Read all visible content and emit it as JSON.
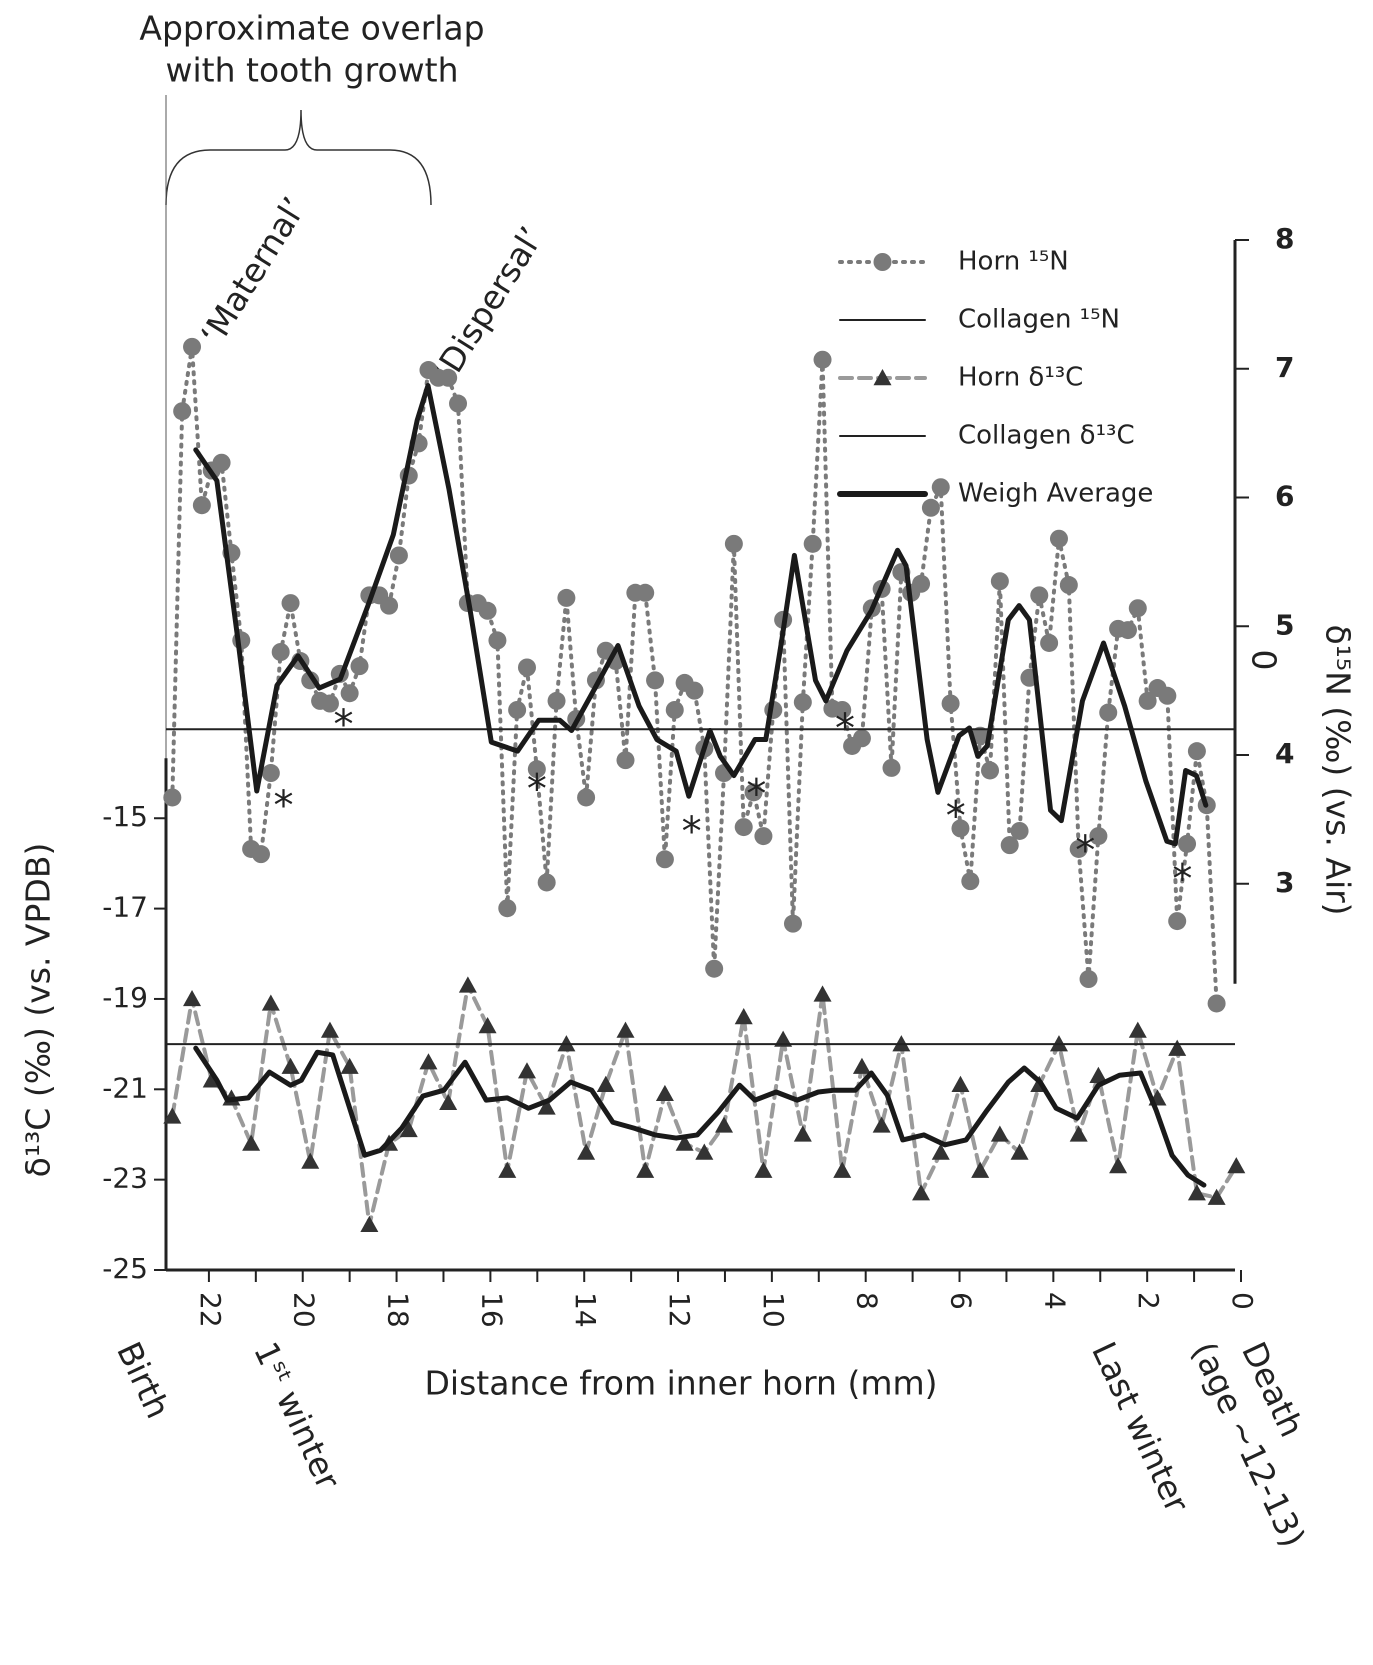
{
  "chart_data": {
    "type": "line",
    "title_lines": [
      "Approximate overlap",
      "with tooth growth"
    ],
    "labels": {
      "maternal": "‘Maternal’",
      "dispersal": "‘Dispersal’",
      "birth": "Birth",
      "first_winter": "1ˢᵗ winter",
      "last_winter": "Last winter",
      "death": [
        "Death",
        "(age ~12-13)"
      ],
      "stray": "0"
    },
    "xlabel": "Distance from inner horn (mm)",
    "ylabel": "δ¹³C (‰) (vs. VPDB)",
    "y2label": "δ¹⁵N (‰) (vs. Air)",
    "xlim": [
      23,
      0
    ],
    "xticks": [
      22,
      20,
      18,
      16,
      14,
      12,
      10,
      8,
      6,
      4,
      2,
      0
    ],
    "ylim": [
      -25,
      -2.2
    ],
    "yticks": [
      -25,
      -23,
      -21,
      -19,
      -17,
      -15
    ],
    "y2lim": [
      0,
      8
    ],
    "y2ticks": [
      3,
      4,
      5,
      6,
      7,
      8
    ],
    "asterisks": {
      "text": "*",
      "axis": "y2",
      "x": [
        20.41,
        19.13,
        15.01,
        11.71,
        10.33,
        8.44,
        6.08,
        3.32,
        1.25
      ],
      "values": [
        3.65,
        4.28,
        3.78,
        3.45,
        3.74,
        4.25,
        3.57,
        3.3,
        3.08
      ]
    },
    "series": [
      {
        "name": "Horn ¹⁵N",
        "axis": "y2",
        "color": "#7a7a7a",
        "style": "dotted",
        "marker": "circle",
        "x": [
          22.78,
          22.57,
          22.36,
          22.15,
          21.94,
          21.73,
          21.52,
          21.31,
          21.1,
          20.89,
          20.68,
          20.47,
          20.26,
          20.05,
          19.84,
          19.63,
          19.42,
          19.21,
          19.0,
          18.79,
          18.58,
          18.37,
          18.16,
          17.95,
          17.74,
          17.53,
          17.32,
          17.11,
          16.9,
          16.69,
          16.48,
          16.27,
          16.06,
          15.85,
          15.64,
          15.43,
          15.22,
          15.01,
          14.8,
          14.59,
          14.38,
          14.17,
          13.96,
          13.75,
          13.54,
          13.33,
          13.12,
          12.91,
          12.7,
          12.49,
          12.28,
          12.07,
          11.86,
          11.65,
          11.44,
          11.23,
          11.02,
          10.81,
          10.6,
          10.39,
          10.18,
          9.97,
          9.76,
          9.55,
          9.34,
          9.13,
          8.92,
          8.71,
          8.5,
          8.29,
          8.08,
          7.87,
          7.66,
          7.45,
          7.24,
          7.03,
          6.82,
          6.61,
          6.4,
          6.19,
          5.98,
          5.77,
          5.56,
          5.35,
          5.14,
          4.93,
          4.72,
          4.51,
          4.3,
          4.09,
          3.88,
          3.67,
          3.46,
          3.25,
          3.04,
          2.83,
          2.62,
          2.41,
          2.2,
          1.99,
          1.78,
          1.57,
          1.36,
          1.15,
          0.94,
          0.73,
          0.52
        ],
        "values": [
          3.67,
          6.67,
          7.17,
          5.94,
          6.21,
          6.27,
          5.57,
          4.89,
          3.27,
          3.23,
          3.86,
          4.8,
          5.18,
          4.73,
          4.58,
          4.42,
          4.4,
          4.63,
          4.48,
          4.69,
          5.24,
          5.24,
          5.16,
          5.55,
          6.17,
          6.42,
          6.99,
          6.93,
          6.93,
          6.73,
          5.18,
          5.18,
          5.12,
          4.89,
          2.81,
          4.35,
          4.68,
          3.89,
          3.01,
          4.42,
          5.22,
          4.28,
          3.67,
          4.58,
          4.81,
          4.73,
          3.96,
          5.26,
          5.26,
          4.58,
          3.19,
          4.35,
          4.56,
          4.5,
          4.05,
          2.34,
          3.86,
          5.64,
          3.44,
          3.71,
          3.37,
          4.35,
          5.05,
          2.69,
          4.41,
          5.64,
          7.07,
          4.36,
          4.35,
          4.07,
          4.13,
          5.14,
          5.29,
          3.9,
          5.42,
          5.26,
          5.33,
          5.92,
          6.08,
          4.4,
          3.43,
          3.02,
          4.15,
          3.88,
          5.35,
          3.3,
          3.41,
          4.6,
          5.24,
          4.87,
          5.68,
          5.32,
          3.27,
          2.26,
          3.37,
          4.33,
          4.98,
          4.97,
          5.14,
          4.42,
          4.52,
          4.46,
          2.71,
          3.31,
          4.03,
          3.61,
          2.07
        ]
      },
      {
        "name": "Collagen ¹⁵N",
        "axis": "y2",
        "color": "#222222",
        "style": "hline",
        "values": [
          4.2
        ]
      },
      {
        "name": "Horn δ¹³C",
        "axis": "y",
        "color": "#9a9a9a",
        "style": "dashed",
        "marker": "triangle",
        "marker_color": "#333333",
        "x": [
          22.78,
          22.36,
          21.94,
          21.52,
          21.1,
          20.68,
          20.26,
          19.84,
          19.42,
          19.0,
          18.58,
          18.16,
          17.74,
          17.32,
          16.9,
          16.48,
          16.06,
          15.64,
          15.22,
          14.8,
          14.38,
          13.96,
          13.54,
          13.12,
          12.7,
          12.28,
          11.86,
          11.44,
          11.02,
          10.6,
          10.18,
          9.76,
          9.34,
          8.92,
          8.5,
          8.08,
          7.66,
          7.24,
          6.82,
          6.4,
          5.98,
          5.56,
          5.14,
          4.72,
          4.3,
          3.88,
          3.46,
          3.04,
          2.62,
          2.2,
          1.78,
          1.36,
          0.94,
          0.52,
          0.1
        ],
        "values": [
          -21.6,
          -19.0,
          -20.8,
          -21.2,
          -22.2,
          -19.1,
          -20.5,
          -22.6,
          -19.7,
          -20.5,
          -24.0,
          -22.2,
          -21.9,
          -20.4,
          -21.3,
          -18.7,
          -19.6,
          -22.8,
          -20.6,
          -21.4,
          -20.0,
          -22.4,
          -20.9,
          -19.7,
          -22.8,
          -21.1,
          -22.2,
          -22.4,
          -21.8,
          -19.4,
          -22.8,
          -19.9,
          -22.0,
          -18.9,
          -22.8,
          -20.5,
          -21.8,
          -20.0,
          -23.3,
          -22.4,
          -20.9,
          -22.8,
          -22.0,
          -22.4,
          -20.9,
          -20.0,
          -22.0,
          -20.7,
          -22.7,
          -19.7,
          -21.2,
          -20.1,
          -23.3,
          -23.4,
          -22.7
        ]
      },
      {
        "name": "Collagen δ¹³C",
        "axis": "y",
        "color": "#222222",
        "style": "hline",
        "values": [
          -20
        ]
      },
      {
        "name": "Weigh Average",
        "axis": "y2",
        "color": "#1a1a1a",
        "style": "thick",
        "x": [
          22.28,
          21.83,
          21.38,
          20.98,
          20.55,
          20.1,
          19.65,
          19.2,
          18.61,
          18.07,
          17.56,
          17.33,
          16.88,
          16.43,
          15.98,
          15.42,
          14.97,
          14.52,
          14.27,
          13.8,
          13.28,
          12.83,
          12.45,
          12.04,
          11.77,
          11.32,
          11.1,
          10.81,
          10.36,
          10.13,
          9.79,
          9.52,
          9.07,
          8.85,
          8.4,
          7.88,
          7.32,
          7.14,
          6.69,
          6.46,
          6.01,
          5.79,
          5.61,
          5.41,
          4.96,
          4.73,
          4.51,
          4.06,
          3.83,
          3.38,
          2.93,
          2.48,
          2.03,
          1.58,
          1.4,
          1.18,
          0.95,
          0.75
        ],
        "values": [
          6.37,
          6.13,
          4.89,
          3.72,
          4.54,
          4.77,
          4.52,
          4.59,
          5.16,
          5.71,
          6.6,
          6.87,
          6.06,
          5.12,
          4.1,
          4.03,
          4.27,
          4.27,
          4.19,
          4.5,
          4.85,
          4.38,
          4.12,
          4.03,
          3.68,
          4.19,
          3.99,
          3.84,
          4.12,
          4.12,
          4.89,
          5.55,
          4.58,
          4.42,
          4.81,
          5.12,
          5.59,
          5.47,
          4.12,
          3.71,
          4.15,
          4.21,
          3.99,
          4.07,
          5.05,
          5.16,
          5.05,
          3.57,
          3.49,
          4.42,
          4.87,
          4.38,
          3.8,
          3.33,
          3.31,
          3.88,
          3.84,
          3.61
        ]
      },
      {
        "axis": "y",
        "color": "#1a1a1a",
        "style": "thick",
        "x": [
          22.28,
          21.83,
          21.61,
          21.16,
          20.71,
          20.26,
          20.03,
          19.69,
          19.36,
          19.02,
          18.68,
          18.34,
          17.89,
          17.44,
          16.99,
          16.54,
          16.09,
          15.64,
          15.19,
          14.74,
          14.29,
          13.84,
          13.39,
          12.94,
          12.49,
          12.04,
          11.59,
          11.14,
          10.69,
          10.36,
          9.91,
          9.46,
          9.01,
          8.67,
          8.22,
          7.88,
          7.54,
          7.21,
          6.76,
          6.31,
          5.86,
          5.41,
          4.96,
          4.62,
          4.28,
          3.94,
          3.49,
          3.04,
          2.59,
          2.14,
          1.81,
          1.47,
          1.13,
          0.79
        ],
        "values": [
          -20.09,
          -20.8,
          -21.24,
          -21.19,
          -20.62,
          -20.91,
          -20.8,
          -20.18,
          -20.24,
          -21.35,
          -22.46,
          -22.35,
          -21.86,
          -21.15,
          -21.02,
          -20.4,
          -21.24,
          -21.19,
          -21.42,
          -21.24,
          -20.84,
          -21.02,
          -21.73,
          -21.86,
          -22.01,
          -22.08,
          -22.01,
          -21.5,
          -20.91,
          -21.24,
          -21.06,
          -21.24,
          -21.06,
          -21.02,
          -21.02,
          -20.64,
          -21.13,
          -22.12,
          -22.01,
          -22.23,
          -22.12,
          -21.46,
          -20.84,
          -20.53,
          -20.84,
          -21.42,
          -21.64,
          -20.91,
          -20.69,
          -20.64,
          -21.46,
          -22.46,
          -22.9,
          -23.12
        ]
      }
    ]
  }
}
